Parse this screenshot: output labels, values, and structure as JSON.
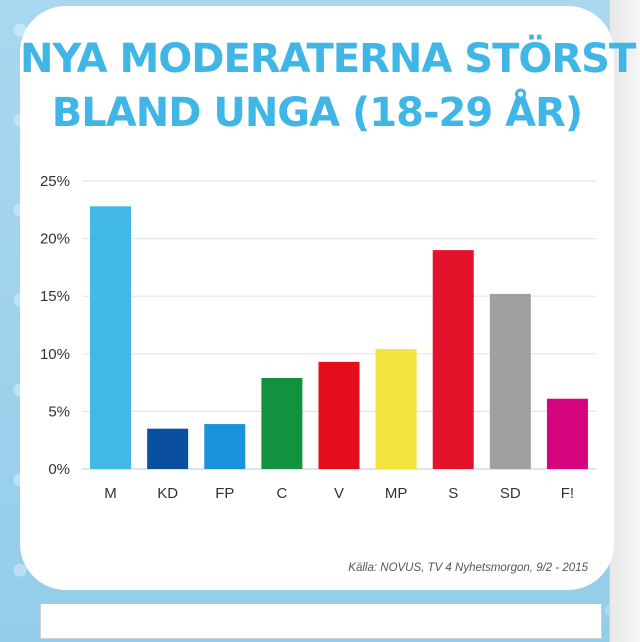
{
  "chart_data": {
    "type": "bar",
    "title_lines": [
      "NYA MODERATERNA STÖRST",
      "BLAND UNGA (18-29 ÅR)"
    ],
    "categories": [
      "M",
      "KD",
      "FP",
      "C",
      "V",
      "MP",
      "S",
      "SD",
      "F!"
    ],
    "values": [
      22.8,
      3.5,
      3.9,
      7.9,
      9.3,
      10.4,
      19.0,
      15.2,
      6.1
    ],
    "colors": [
      "#41b8e6",
      "#0a4fa0",
      "#1a93dc",
      "#12913f",
      "#e30d1b",
      "#f4e33c",
      "#e4122a",
      "#a0a0a0",
      "#d6057f"
    ],
    "ylim": [
      0,
      25
    ],
    "yticks": [
      0,
      5,
      10,
      15,
      20,
      25
    ],
    "ytick_labels": [
      "0%",
      "5%",
      "10%",
      "15%",
      "20%",
      "25%"
    ],
    "grid": true,
    "source": "Källa: NOVUS, TV 4 Nyhetsmorgon, 9/2 - 2015"
  }
}
